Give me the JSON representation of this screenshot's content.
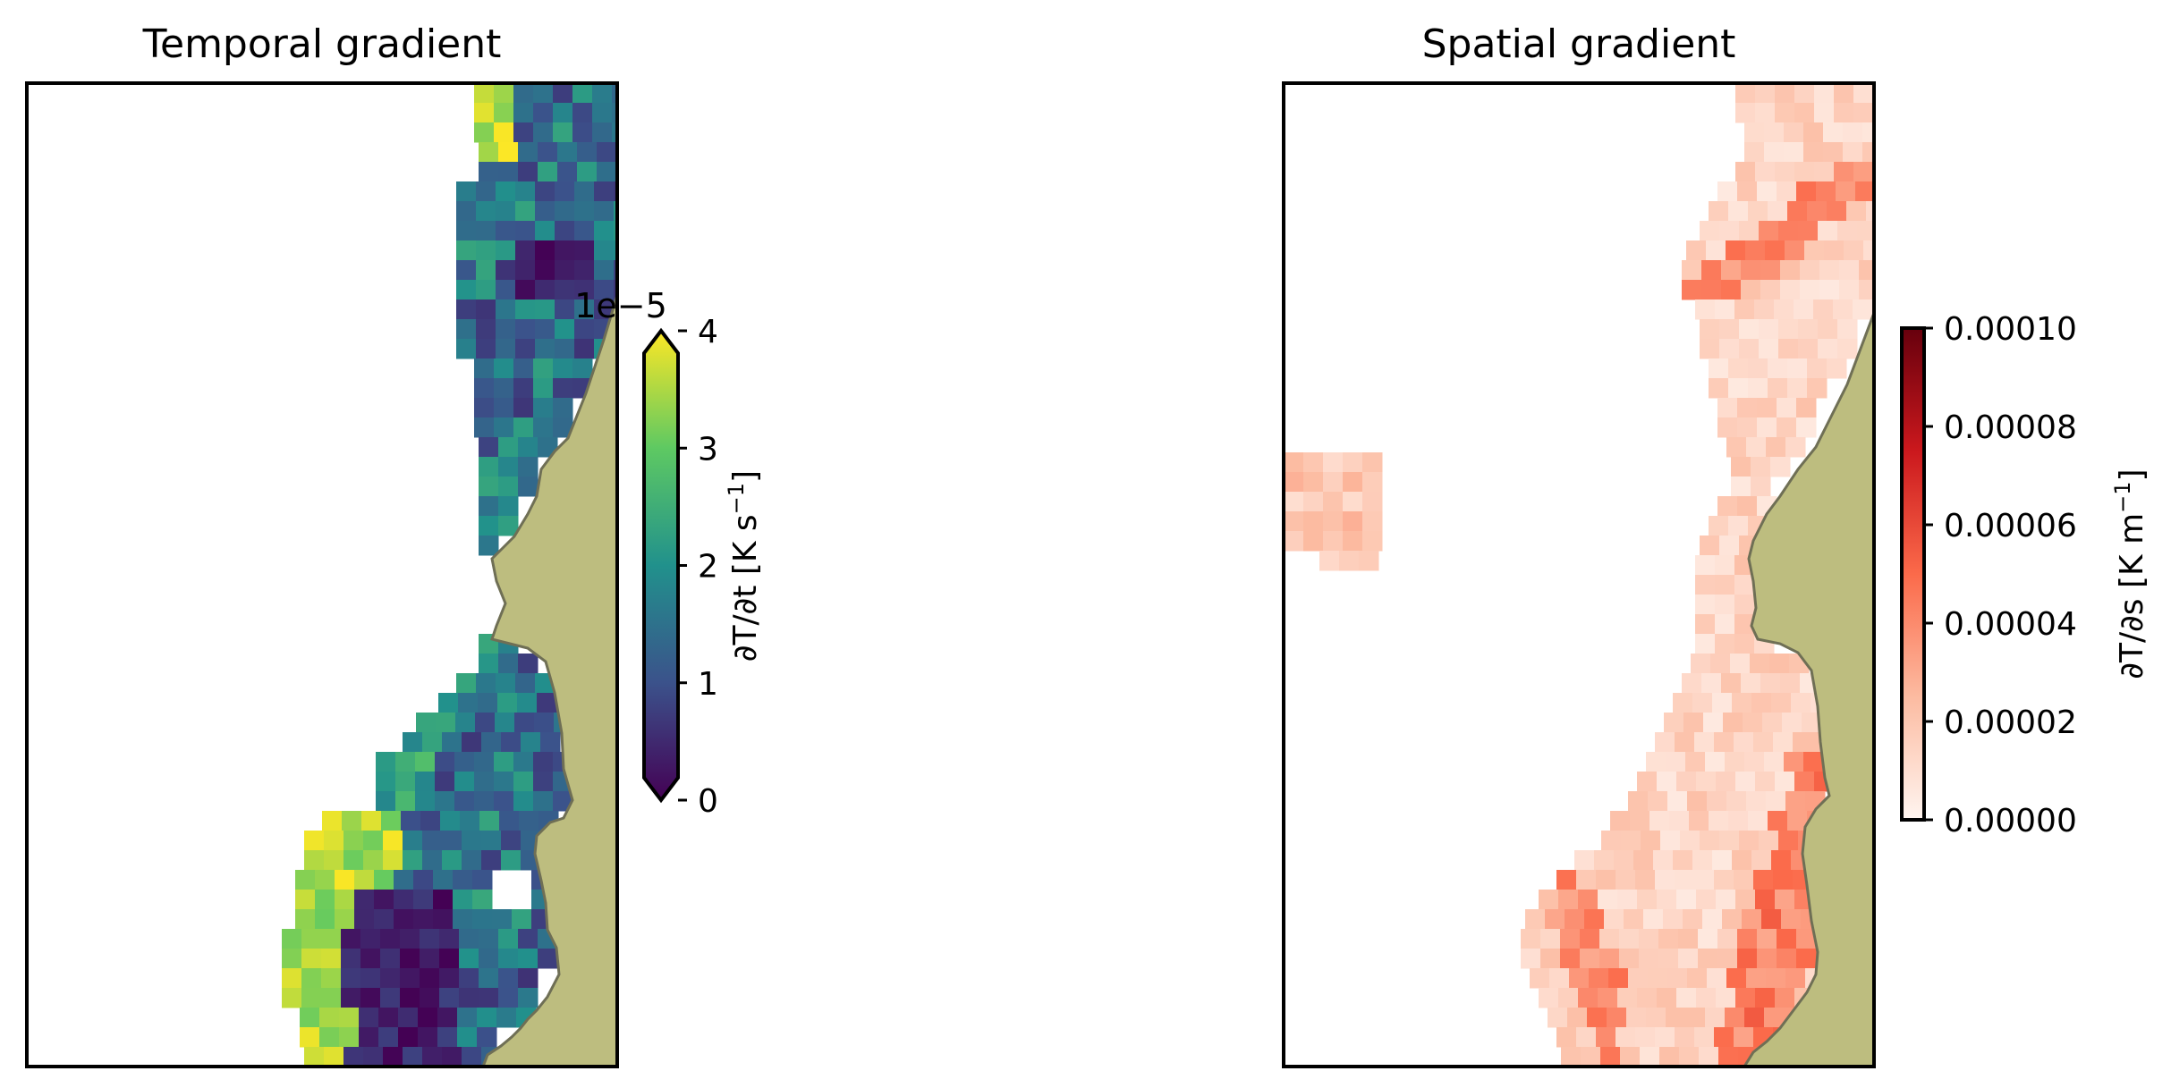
{
  "chart_data": [
    {
      "type": "heatmap",
      "title": "Temporal gradient",
      "colormap": "viridis",
      "colorbar": {
        "label": "∂T/∂t [K s⁻¹]",
        "label_main": "∂T/∂t [K s",
        "label_exp": "−1",
        "label_close": "]",
        "offset_text": "1e−5",
        "range": [
          0,
          4
        ],
        "ticks": [
          0,
          1,
          2,
          3,
          4
        ],
        "tick_labels": [
          "0",
          "1",
          "2",
          "3",
          "4"
        ],
        "extend": "both"
      },
      "land_color": "#bdbd7f",
      "grid_on": false,
      "legend": "none"
    },
    {
      "type": "heatmap",
      "title": "Spatial gradient",
      "colormap": "Reds",
      "colorbar": {
        "label": "∂T/∂s [K m⁻¹]",
        "label_main": "∂T/∂s [K m",
        "label_exp": "−1",
        "label_close": "]",
        "range": [
          0,
          0.0001
        ],
        "ticks": [
          0,
          2e-05,
          4e-05,
          6e-05,
          8e-05,
          0.0001
        ],
        "tick_labels": [
          "0.00000",
          "0.00002",
          "0.00004",
          "0.00006",
          "0.00008",
          "0.00010"
        ],
        "extend": "neither"
      },
      "land_color": "#bdbd7f",
      "grid_on": false,
      "legend": "none"
    }
  ]
}
